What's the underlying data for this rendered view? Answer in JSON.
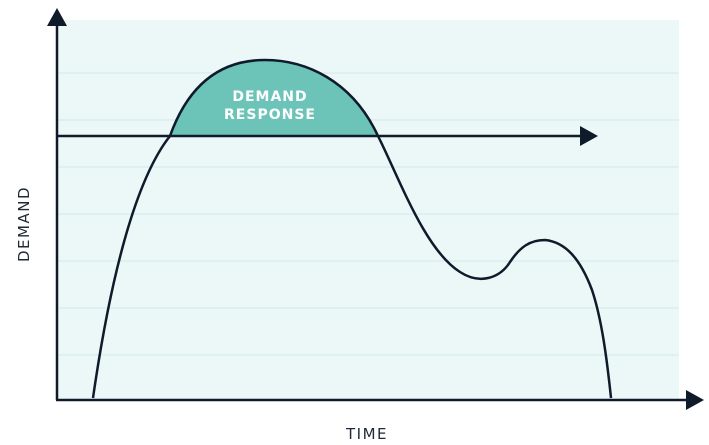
{
  "x_axis_label": "TIME",
  "y_axis_label": "DEMAND",
  "region_label_line1": "DEMAND",
  "region_label_line2": "RESPONSE",
  "colors": {
    "plot_background": "#ecf7f7",
    "gridline": "#cfeaea",
    "highlight_fill": "#6cc4b8",
    "ink": "#0f1b2a",
    "axis_text": "#1e2a35"
  }
}
